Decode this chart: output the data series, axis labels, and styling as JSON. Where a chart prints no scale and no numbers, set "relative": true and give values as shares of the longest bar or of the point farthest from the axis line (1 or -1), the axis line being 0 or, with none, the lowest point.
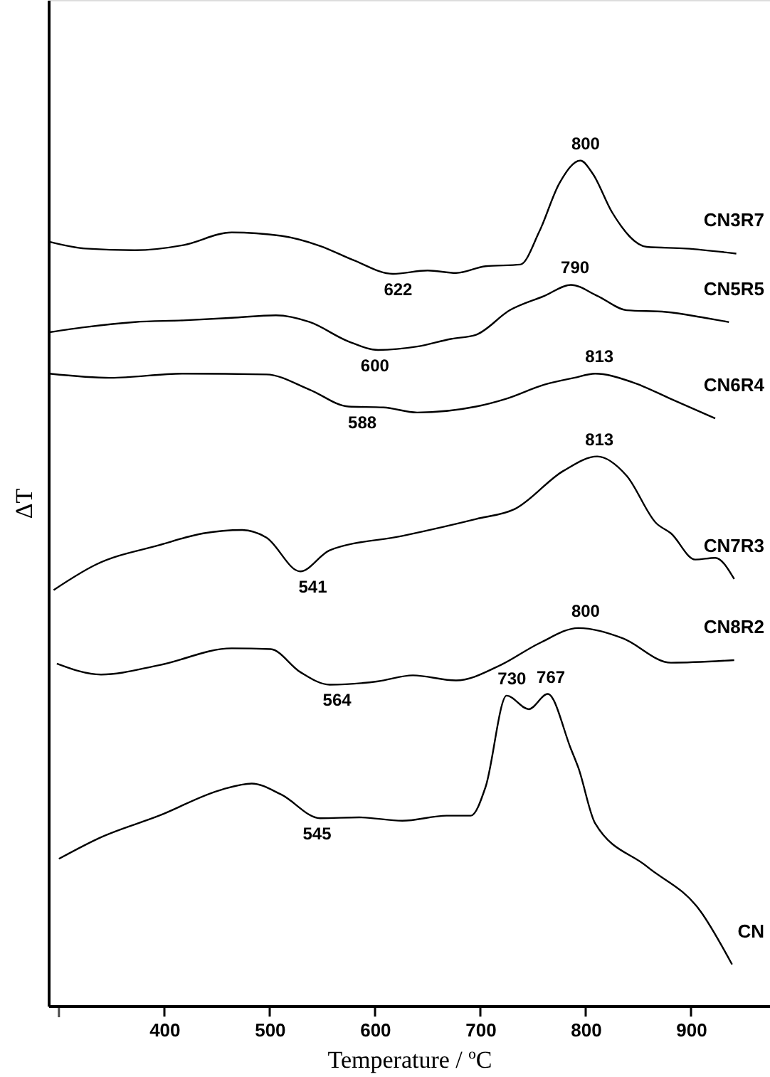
{
  "chart_data": {
    "type": "line",
    "relative": true,
    "xlabel": "Temperature / ºC",
    "ylabel": "ΔT",
    "xlim": [
      290,
      975
    ],
    "xticks": [
      {
        "value": 300,
        "label": null
      },
      400,
      500,
      600,
      700,
      800,
      900
    ],
    "legend": false,
    "grid": false,
    "marker": "none",
    "line_style": "solid",
    "series": [
      {
        "name": "CN3R7",
        "color": "#000000",
        "x": [
          291,
          325,
          372,
          418,
          464,
          511,
          548,
          580,
          617,
          650,
          677,
          705,
          738,
          756,
          775,
          795,
          807,
          825,
          858,
          895,
          943
        ],
        "values": [
          0.904,
          0.896,
          0.894,
          0.9,
          0.915,
          0.911,
          0.899,
          0.882,
          0.866,
          0.87,
          0.867,
          0.875,
          0.877,
          0.916,
          0.973,
          1.0,
          0.984,
          0.939,
          0.898,
          0.896,
          0.89
        ]
      },
      {
        "name": "CN5R5",
        "color": "#000000",
        "x": [
          291,
          325,
          372,
          418,
          464,
          506,
          538,
          575,
          603,
          640,
          672,
          696,
          728,
          761,
          786,
          811,
          839,
          876,
          913,
          936
        ],
        "values": [
          0.797,
          0.803,
          0.809,
          0.811,
          0.814,
          0.817,
          0.809,
          0.786,
          0.776,
          0.78,
          0.789,
          0.794,
          0.823,
          0.84,
          0.853,
          0.84,
          0.823,
          0.821,
          0.814,
          0.809
        ]
      },
      {
        "name": "CN6R4",
        "color": "#000000",
        "x": [
          291,
          349,
          418,
          497,
          538,
          575,
          608,
          640,
          696,
          724,
          761,
          789,
          809,
          844,
          881,
          923
        ],
        "values": [
          0.748,
          0.743,
          0.748,
          0.747,
          0.729,
          0.709,
          0.708,
          0.702,
          0.709,
          0.718,
          0.735,
          0.743,
          0.748,
          0.738,
          0.718,
          0.695
        ]
      },
      {
        "name": "CN7R3",
        "color": "#000000",
        "x": [
          295,
          335,
          395,
          437,
          474,
          497,
          529,
          557,
          626,
          696,
          733,
          779,
          811,
          839,
          867,
          881,
          904,
          923,
          941
        ],
        "values": [
          0.492,
          0.522,
          0.545,
          0.559,
          0.563,
          0.554,
          0.514,
          0.539,
          0.556,
          0.576,
          0.588,
          0.633,
          0.65,
          0.627,
          0.571,
          0.559,
          0.528,
          0.53,
          0.505
        ]
      },
      {
        "name": "CN8R2",
        "color": "#000000",
        "x": [
          298,
          340,
          395,
          464,
          501,
          529,
          557,
          603,
          636,
          677,
          719,
          756,
          793,
          835,
          881,
          941
        ],
        "values": [
          0.405,
          0.392,
          0.403,
          0.423,
          0.422,
          0.395,
          0.38,
          0.384,
          0.391,
          0.385,
          0.403,
          0.429,
          0.447,
          0.435,
          0.406,
          0.409
        ]
      },
      {
        "name": "CN",
        "color": "#000000",
        "x": [
          300,
          339,
          395,
          455,
          483,
          511,
          548,
          585,
          626,
          668,
          691,
          705,
          725,
          746,
          764,
          786,
          793,
          809,
          858,
          909,
          939
        ],
        "values": [
          0.174,
          0.199,
          0.225,
          0.256,
          0.263,
          0.25,
          0.222,
          0.223,
          0.219,
          0.225,
          0.225,
          0.259,
          0.367,
          0.351,
          0.369,
          0.304,
          0.282,
          0.216,
          0.165,
          0.112,
          0.049
        ]
      }
    ],
    "annotations": [
      {
        "text": "800",
        "x": 800,
        "y": 1.0
      },
      {
        "text": "622",
        "x": 622,
        "y": 0.866
      },
      {
        "text": "790",
        "x": 790,
        "y": 0.853
      },
      {
        "text": "600",
        "x": 600,
        "y": 0.776
      },
      {
        "text": "813",
        "x": 813,
        "y": 0.748
      },
      {
        "text": "588",
        "x": 588,
        "y": 0.709
      },
      {
        "text": "813",
        "x": 813,
        "y": 0.65
      },
      {
        "text": "541",
        "x": 541,
        "y": 0.514
      },
      {
        "text": "800",
        "x": 800,
        "y": 0.447
      },
      {
        "text": "564",
        "x": 564,
        "y": 0.38
      },
      {
        "text": "730",
        "x": 730,
        "y": 0.367
      },
      {
        "text": "767",
        "x": 767,
        "y": 0.369
      },
      {
        "text": "545",
        "x": 545,
        "y": 0.222
      }
    ]
  }
}
